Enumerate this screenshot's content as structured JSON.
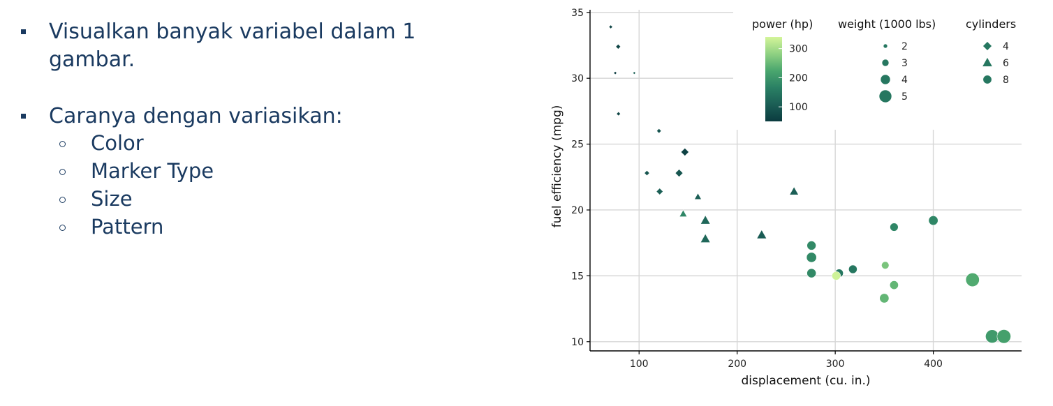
{
  "slide": {
    "bullets": [
      {
        "line1": "Visualkan banyak variabel dalam 1",
        "line2": "gambar."
      },
      {
        "line1": "Caranya dengan variasikan:"
      }
    ],
    "sub_bullets": [
      "Color",
      "Marker Type",
      "Size",
      "Pattern"
    ]
  },
  "chart_data": {
    "type": "scatter",
    "xlabel": "displacement (cu. in.)",
    "ylabel": "fuel efficiency (mpg)",
    "xlim": [
      50,
      490
    ],
    "ylim": [
      9.3,
      35.2
    ],
    "xticks": [
      100,
      200,
      300,
      400
    ],
    "yticks": [
      10,
      15,
      20,
      25,
      30,
      35
    ],
    "grid": true,
    "legend_placement": "top-right",
    "color_scale": {
      "title": "power (hp)",
      "ticks": [
        100,
        200,
        300
      ],
      "range": [
        50,
        340
      ],
      "colors": [
        "#0b3b3f",
        "#1b5e55",
        "#2a8064",
        "#4aa66e",
        "#8fd182",
        "#d4f59a"
      ]
    },
    "size_legend": {
      "title": "weight (1000 lbs)",
      "values": [
        2,
        3,
        4,
        5
      ]
    },
    "shape_legend": {
      "title": "cylinders",
      "entries": [
        {
          "value": 4,
          "shape": "diamond"
        },
        {
          "value": 6,
          "shape": "triangle"
        },
        {
          "value": 8,
          "shape": "circle"
        }
      ]
    },
    "points": [
      {
        "x": 71.1,
        "y": 33.9,
        "hp": 65,
        "wt": 1.8,
        "cyl": 4
      },
      {
        "x": 78.7,
        "y": 32.4,
        "hp": 66,
        "wt": 2.2,
        "cyl": 4
      },
      {
        "x": 75.7,
        "y": 30.4,
        "hp": 52,
        "wt": 1.6,
        "cyl": 4
      },
      {
        "x": 95.1,
        "y": 30.4,
        "hp": 113,
        "wt": 1.5,
        "cyl": 4
      },
      {
        "x": 79.0,
        "y": 27.3,
        "hp": 66,
        "wt": 1.9,
        "cyl": 4
      },
      {
        "x": 120.3,
        "y": 26.0,
        "hp": 91,
        "wt": 2.1,
        "cyl": 4
      },
      {
        "x": 146.7,
        "y": 24.4,
        "hp": 62,
        "wt": 3.2,
        "cyl": 4
      },
      {
        "x": 108.0,
        "y": 22.8,
        "hp": 93,
        "wt": 2.3,
        "cyl": 4
      },
      {
        "x": 140.8,
        "y": 22.8,
        "hp": 95,
        "wt": 3.15,
        "cyl": 4
      },
      {
        "x": 121.0,
        "y": 21.4,
        "hp": 109,
        "wt": 2.8,
        "cyl": 4
      },
      {
        "x": 160.0,
        "y": 21.0,
        "hp": 110,
        "wt": 2.6,
        "cyl": 6
      },
      {
        "x": 258.0,
        "y": 21.4,
        "hp": 110,
        "wt": 3.2,
        "cyl": 6
      },
      {
        "x": 145.0,
        "y": 19.7,
        "hp": 175,
        "wt": 2.8,
        "cyl": 6
      },
      {
        "x": 167.6,
        "y": 19.2,
        "hp": 123,
        "wt": 3.44,
        "cyl": 6
      },
      {
        "x": 167.6,
        "y": 17.8,
        "hp": 123,
        "wt": 3.44,
        "cyl": 6
      },
      {
        "x": 225.0,
        "y": 18.1,
        "hp": 105,
        "wt": 3.46,
        "cyl": 6
      },
      {
        "x": 360.0,
        "y": 18.7,
        "hp": 175,
        "wt": 3.44,
        "cyl": 8
      },
      {
        "x": 400.0,
        "y": 19.2,
        "hp": 175,
        "wt": 3.85,
        "cyl": 8
      },
      {
        "x": 275.8,
        "y": 17.3,
        "hp": 180,
        "wt": 3.73,
        "cyl": 8
      },
      {
        "x": 275.8,
        "y": 16.4,
        "hp": 180,
        "wt": 4.07,
        "cyl": 8
      },
      {
        "x": 275.8,
        "y": 15.2,
        "hp": 180,
        "wt": 3.78,
        "cyl": 8
      },
      {
        "x": 304.0,
        "y": 15.2,
        "hp": 150,
        "wt": 3.44,
        "cyl": 8
      },
      {
        "x": 318.0,
        "y": 15.5,
        "hp": 150,
        "wt": 3.52,
        "cyl": 8
      },
      {
        "x": 301.0,
        "y": 15.0,
        "hp": 335,
        "wt": 3.57,
        "cyl": 8
      },
      {
        "x": 351.0,
        "y": 15.8,
        "hp": 264,
        "wt": 3.17,
        "cyl": 8
      },
      {
        "x": 360.0,
        "y": 14.3,
        "hp": 245,
        "wt": 3.57,
        "cyl": 8
      },
      {
        "x": 350.0,
        "y": 13.3,
        "hp": 245,
        "wt": 3.84,
        "cyl": 8
      },
      {
        "x": 440.0,
        "y": 14.7,
        "hp": 230,
        "wt": 5.35,
        "cyl": 8
      },
      {
        "x": 460.0,
        "y": 10.4,
        "hp": 205,
        "wt": 5.25,
        "cyl": 8
      },
      {
        "x": 472.0,
        "y": 10.4,
        "hp": 215,
        "wt": 5.42,
        "cyl": 8
      }
    ]
  }
}
